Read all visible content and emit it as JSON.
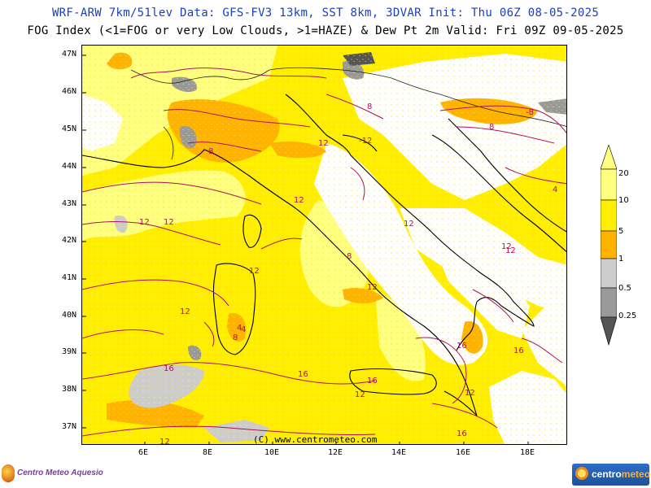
{
  "header": {
    "line1": "WRF-ARW 7km/51lev  Data: GFS-FV3 13km, SST 8km, 3DVAR  Init: Thu 06Z 08-05-2025",
    "line2": "FOG Index (<1=FOG or very Low Clouds, >1=HAZE) & Dew Pt 2m  Valid: Fri 09Z 09-05-2025"
  },
  "axes": {
    "lat_labels": [
      "47N",
      "46N",
      "45N",
      "44N",
      "43N",
      "42N",
      "41N",
      "40N",
      "39N",
      "38N",
      "37N"
    ],
    "lon_labels": [
      "6E",
      "8E",
      "10E",
      "12E",
      "14E",
      "16E",
      "18E"
    ]
  },
  "legend": {
    "labels": [
      "20",
      "10",
      "5",
      "1",
      "0.5",
      "0.25"
    ],
    "colors": {
      "yellow_light": "#ffff80",
      "yellow": "#ffee00",
      "orange": "#ffb300",
      "gray_light": "#cccccc",
      "gray": "#999999",
      "gray_dark": "#555555"
    }
  },
  "contour_labels": [
    "8",
    "-12",
    "-8",
    "8",
    "12",
    "12",
    "12",
    "8",
    "12",
    "12",
    "12",
    "4",
    "8",
    "12",
    "12",
    "12",
    "16",
    "16",
    "16",
    "16",
    "12",
    "16",
    "12",
    "16",
    "12",
    "4",
    "4",
    "12",
    "8"
  ],
  "credit": "(C) www.centrometeo.com",
  "logos": {
    "left_text": "Centro Meteo Aquesio",
    "right_text_a": "centro",
    "right_text_b": "meteo"
  }
}
